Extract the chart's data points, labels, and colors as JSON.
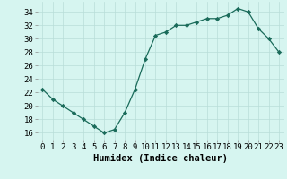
{
  "x": [
    0,
    1,
    2,
    3,
    4,
    5,
    6,
    7,
    8,
    9,
    10,
    11,
    12,
    13,
    14,
    15,
    16,
    17,
    18,
    19,
    20,
    21,
    22,
    23
  ],
  "y": [
    22.5,
    21,
    20,
    19,
    18,
    17,
    16,
    16.5,
    19,
    22.5,
    27,
    30.5,
    31,
    32,
    32,
    32.5,
    33,
    33,
    33.5,
    34.5,
    34,
    31.5,
    30,
    28
  ],
  "line_color": "#1a6b5a",
  "marker": "D",
  "marker_size": 2.2,
  "bg_color": "#d6f5f0",
  "grid_color": "#b8ddd8",
  "xlabel": "Humidex (Indice chaleur)",
  "xlim": [
    -0.5,
    23.5
  ],
  "ylim": [
    15,
    35.5
  ],
  "yticks": [
    16,
    18,
    20,
    22,
    24,
    26,
    28,
    30,
    32,
    34
  ],
  "xticks": [
    0,
    1,
    2,
    3,
    4,
    5,
    6,
    7,
    8,
    9,
    10,
    11,
    12,
    13,
    14,
    15,
    16,
    17,
    18,
    19,
    20,
    21,
    22,
    23
  ],
  "tick_label_fontsize": 6.5,
  "xlabel_fontsize": 7.5
}
